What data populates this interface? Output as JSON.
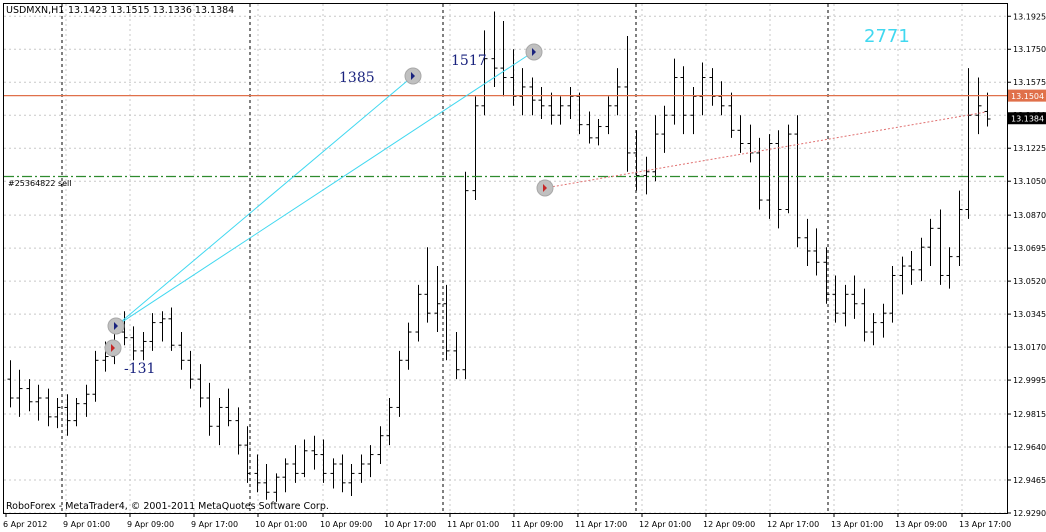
{
  "header": {
    "symbol": "USDMXN,H1",
    "ohlc": "13.1423 13.1515 13.1336 13.1384"
  },
  "footer": {
    "copyright": "RoboForex - MetaTrader4, © 2001-2011 MetaQuotes Software Corp."
  },
  "annotations": {
    "big_number": "2771",
    "labels": [
      {
        "text": "1385",
        "position": "left-of-upper-marker"
      },
      {
        "text": "1517",
        "position": "right-of-upper-marker"
      },
      {
        "text": "-131",
        "position": "below-lower-marker"
      }
    ],
    "order_label": "#25364822 sell"
  },
  "colors": {
    "candle": "#000000",
    "grid": "#c8c8c8",
    "separator": "#000000",
    "current_price_line": "#e0704a",
    "order_line": "#2e8b2e",
    "trade_lines": "#40d8f0",
    "trendline": "#e07070",
    "big_number": "#40d8f0",
    "annotation_text": "#1a237e"
  },
  "chart_data": {
    "type": "bar",
    "symbol": "USDMXN",
    "timeframe": "H1",
    "y_axis": {
      "ylim": [
        12.929,
        13.199
      ],
      "tick_labels": [
        "13.1925",
        "13.1750",
        "13.1575",
        "13.1400",
        "13.1225",
        "13.1050",
        "13.0870",
        "13.0695",
        "13.0520",
        "13.0345",
        "13.0170",
        "12.9995",
        "12.9815",
        "12.9640",
        "12.9465",
        "12.9290"
      ]
    },
    "x_axis": {
      "tick_labels": [
        "6 Apr 2012",
        "9 Apr 01:00",
        "9 Apr 09:00",
        "9 Apr 17:00",
        "10 Apr 01:00",
        "10 Apr 09:00",
        "10 Apr 17:00",
        "11 Apr 01:00",
        "11 Apr 09:00",
        "11 Apr 17:00",
        "12 Apr 01:00",
        "12 Apr 09:00",
        "12 Apr 17:00",
        "13 Apr 01:00",
        "13 Apr 09:00",
        "13 Apr 17:00"
      ]
    },
    "grid": true,
    "day_separators": [
      "9 Apr 2012",
      "10 Apr 2012",
      "11 Apr 2012",
      "12 Apr 2012",
      "13 Apr 2012"
    ],
    "price_tags": [
      {
        "value": 13.1504,
        "label": "13.1504",
        "style": "current-price-line"
      },
      {
        "value": 13.1384,
        "label": "13.1384",
        "style": "bid"
      }
    ],
    "order_line": {
      "value": 13.1075,
      "label": "#25364822 sell"
    },
    "bars": [
      [
        13.0,
        13.01,
        12.985,
        12.99
      ],
      [
        12.99,
        13.005,
        12.98,
        12.995
      ],
      [
        12.995,
        13.0,
        12.983,
        12.988
      ],
      [
        12.988,
        12.997,
        12.978,
        12.99
      ],
      [
        12.99,
        12.995,
        12.975,
        12.98
      ],
      [
        12.98,
        12.99,
        12.974,
        12.985
      ],
      [
        12.985,
        12.992,
        12.97,
        12.978
      ],
      [
        12.978,
        12.99,
        12.975,
        12.987
      ],
      [
        12.987,
        12.997,
        12.98,
        12.992
      ],
      [
        12.992,
        13.015,
        12.988,
        13.01
      ],
      [
        13.01,
        13.02,
        13.004,
        13.012
      ],
      [
        13.012,
        13.03,
        13.008,
        13.025
      ],
      [
        13.025,
        13.036,
        13.018,
        13.022
      ],
      [
        13.022,
        13.028,
        13.01,
        13.015
      ],
      [
        13.015,
        13.025,
        13.01,
        13.02
      ],
      [
        13.02,
        13.035,
        13.015,
        13.03
      ],
      [
        13.03,
        13.036,
        13.02,
        13.032
      ],
      [
        13.032,
        13.038,
        13.015,
        13.018
      ],
      [
        13.018,
        13.025,
        13.005,
        13.01
      ],
      [
        13.01,
        13.015,
        12.995,
        13.0
      ],
      [
        13.0,
        13.008,
        12.985,
        12.99
      ],
      [
        12.99,
        12.998,
        12.97,
        12.975
      ],
      [
        12.975,
        12.99,
        12.965,
        12.985
      ],
      [
        12.985,
        12.995,
        12.975,
        12.978
      ],
      [
        12.978,
        12.985,
        12.96,
        12.965
      ],
      [
        12.965,
        12.975,
        12.945,
        12.95
      ],
      [
        12.95,
        12.96,
        12.94,
        12.945
      ],
      [
        12.945,
        12.955,
        12.936,
        12.94
      ],
      [
        12.94,
        12.95,
        12.935,
        12.948
      ],
      [
        12.948,
        12.958,
        12.94,
        12.955
      ],
      [
        12.955,
        12.965,
        12.945,
        12.95
      ],
      [
        12.95,
        12.968,
        12.948,
        12.962
      ],
      [
        12.962,
        12.97,
        12.952,
        12.96
      ],
      [
        12.96,
        12.968,
        12.945,
        12.95
      ],
      [
        12.95,
        12.958,
        12.942,
        12.955
      ],
      [
        12.955,
        12.96,
        12.94,
        12.945
      ],
      [
        12.945,
        12.955,
        12.938,
        12.95
      ],
      [
        12.95,
        12.96,
        12.945,
        12.955
      ],
      [
        12.955,
        12.965,
        12.948,
        12.96
      ],
      [
        12.96,
        12.975,
        12.955,
        12.97
      ],
      [
        12.97,
        12.99,
        12.965,
        12.985
      ],
      [
        12.985,
        13.015,
        12.98,
        13.01
      ],
      [
        13.01,
        13.03,
        13.005,
        13.025
      ],
      [
        13.025,
        13.05,
        13.02,
        13.045
      ],
      [
        13.045,
        13.07,
        13.03,
        13.035
      ],
      [
        13.035,
        13.06,
        13.025,
        13.04
      ],
      [
        13.04,
        13.05,
        13.01,
        13.015
      ],
      [
        13.015,
        13.025,
        13.0,
        13.005
      ],
      [
        13.005,
        13.11,
        13.0,
        13.1
      ],
      [
        13.1,
        13.15,
        13.095,
        13.145
      ],
      [
        13.145,
        13.185,
        13.14,
        13.17
      ],
      [
        13.17,
        13.195,
        13.155,
        13.165
      ],
      [
        13.165,
        13.19,
        13.15,
        13.16
      ],
      [
        13.16,
        13.175,
        13.145,
        13.15
      ],
      [
        13.15,
        13.165,
        13.14,
        13.155
      ],
      [
        13.155,
        13.16,
        13.14,
        13.148
      ],
      [
        13.148,
        13.155,
        13.138,
        13.145
      ],
      [
        13.145,
        13.152,
        13.135,
        13.14
      ],
      [
        13.14,
        13.15,
        13.135,
        13.145
      ],
      [
        13.145,
        13.155,
        13.138,
        13.15
      ],
      [
        13.15,
        13.152,
        13.13,
        13.135
      ],
      [
        13.135,
        13.142,
        13.125,
        13.128
      ],
      [
        13.128,
        13.138,
        13.124,
        13.134
      ],
      [
        13.134,
        13.15,
        13.13,
        13.145
      ],
      [
        13.145,
        13.165,
        13.14,
        13.155
      ],
      [
        13.155,
        13.182,
        13.11,
        13.12
      ],
      [
        13.12,
        13.132,
        13.1,
        13.108
      ],
      [
        13.108,
        13.118,
        13.098,
        13.11
      ],
      [
        13.11,
        13.14,
        13.105,
        13.13
      ],
      [
        13.13,
        13.145,
        13.12,
        13.14
      ],
      [
        13.14,
        13.17,
        13.135,
        13.16
      ],
      [
        13.16,
        13.166,
        13.13,
        13.14
      ],
      [
        13.14,
        13.155,
        13.13,
        13.15
      ],
      [
        13.15,
        13.168,
        13.14,
        13.16
      ],
      [
        13.16,
        13.165,
        13.145,
        13.15
      ],
      [
        13.15,
        13.158,
        13.14,
        13.145
      ],
      [
        13.145,
        13.152,
        13.128,
        13.132
      ],
      [
        13.132,
        13.14,
        13.12,
        13.125
      ],
      [
        13.125,
        13.135,
        13.115,
        13.12
      ],
      [
        13.12,
        13.128,
        13.09,
        13.095
      ],
      [
        13.095,
        13.13,
        13.085,
        13.125
      ],
      [
        13.125,
        13.132,
        13.08,
        13.09
      ],
      [
        13.09,
        13.135,
        13.088,
        13.13
      ],
      [
        13.13,
        13.14,
        13.07,
        13.075
      ],
      [
        13.075,
        13.085,
        13.06,
        13.068
      ],
      [
        13.068,
        13.08,
        13.055,
        13.062
      ],
      [
        13.062,
        13.07,
        13.04,
        13.045
      ],
      [
        13.045,
        13.055,
        13.03,
        13.035
      ],
      [
        13.035,
        13.05,
        13.028,
        13.045
      ],
      [
        13.045,
        13.055,
        13.032,
        13.04
      ],
      [
        13.04,
        13.048,
        13.02,
        13.025
      ],
      [
        13.025,
        13.035,
        13.018,
        13.03
      ],
      [
        13.03,
        13.04,
        13.022,
        13.035
      ],
      [
        13.035,
        13.06,
        13.03,
        13.055
      ],
      [
        13.055,
        13.065,
        13.045,
        13.06
      ],
      [
        13.06,
        13.068,
        13.05,
        13.058
      ],
      [
        13.058,
        13.075,
        13.052,
        13.07
      ],
      [
        13.07,
        13.085,
        13.06,
        13.08
      ],
      [
        13.08,
        13.09,
        13.05,
        13.055
      ],
      [
        13.055,
        13.07,
        13.048,
        13.065
      ],
      [
        13.065,
        13.1,
        13.06,
        13.09
      ],
      [
        13.09,
        13.165,
        13.085,
        13.14
      ],
      [
        13.14,
        13.16,
        13.13,
        13.145
      ],
      [
        13.142,
        13.152,
        13.134,
        13.138
      ]
    ]
  }
}
